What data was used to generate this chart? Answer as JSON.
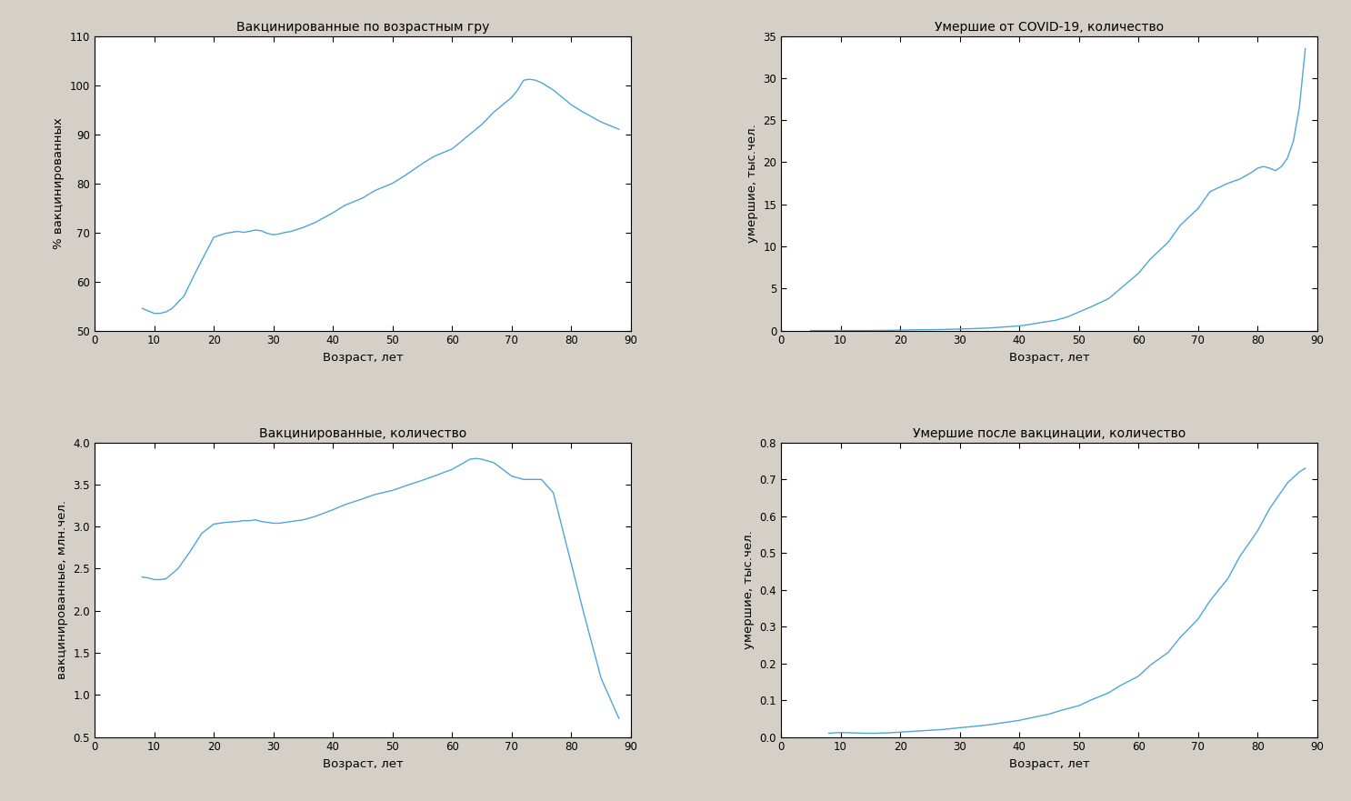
{
  "plot1": {
    "title": "Вакцинированные по возрастным гру",
    "xlabel": "Возраст, лет",
    "ylabel": "% вакцинированных",
    "xlim": [
      0,
      90
    ],
    "ylim": [
      50,
      110
    ],
    "yticks": [
      50,
      60,
      70,
      80,
      90,
      100,
      110
    ],
    "xticks": [
      0,
      10,
      20,
      30,
      40,
      50,
      60,
      70,
      80,
      90
    ],
    "x": [
      8,
      9,
      10,
      11,
      12,
      13,
      15,
      17,
      20,
      22,
      24,
      25,
      26,
      27,
      28,
      29,
      30,
      31,
      32,
      33,
      35,
      37,
      40,
      42,
      45,
      47,
      50,
      52,
      55,
      57,
      60,
      62,
      65,
      67,
      70,
      71,
      72,
      73,
      74,
      75,
      77,
      80,
      82,
      85,
      88
    ],
    "y": [
      54.5,
      54.0,
      53.5,
      53.5,
      53.8,
      54.5,
      57.0,
      62.0,
      69.0,
      69.8,
      70.2,
      70.0,
      70.2,
      70.5,
      70.3,
      69.8,
      69.5,
      69.7,
      70.0,
      70.2,
      71.0,
      72.0,
      74.0,
      75.5,
      77.0,
      78.5,
      80.0,
      81.5,
      84.0,
      85.5,
      87.0,
      89.0,
      92.0,
      94.5,
      97.5,
      99.0,
      101.0,
      101.2,
      101.0,
      100.5,
      99.0,
      96.0,
      94.5,
      92.5,
      91.0
    ],
    "color": "#4DA6D8",
    "linewidth": 1.0
  },
  "plot2": {
    "title": "Умершие от COVID-19, количество",
    "xlabel": "Возраст, лет",
    "ylabel": "умершие, тыс.чел.",
    "xlim": [
      0,
      90
    ],
    "ylim": [
      0,
      35
    ],
    "yticks": [
      0,
      5,
      10,
      15,
      20,
      25,
      30,
      35
    ],
    "xticks": [
      0,
      10,
      20,
      30,
      40,
      50,
      60,
      70,
      80,
      90
    ],
    "x": [
      5,
      8,
      10,
      12,
      15,
      17,
      18,
      19,
      20,
      22,
      25,
      27,
      30,
      32,
      35,
      37,
      40,
      42,
      44,
      45,
      46,
      47,
      48,
      49,
      50,
      52,
      55,
      57,
      60,
      62,
      65,
      67,
      70,
      72,
      75,
      77,
      79,
      80,
      81,
      82,
      83,
      84,
      85,
      86,
      87,
      88
    ],
    "y": [
      0.0,
      0.0,
      0.0,
      0.0,
      0.0,
      0.01,
      0.02,
      0.03,
      0.05,
      0.08,
      0.1,
      0.12,
      0.18,
      0.22,
      0.3,
      0.4,
      0.55,
      0.75,
      1.0,
      1.1,
      1.2,
      1.4,
      1.6,
      1.9,
      2.2,
      2.8,
      3.8,
      5.0,
      6.8,
      8.5,
      10.5,
      12.5,
      14.5,
      16.5,
      17.5,
      18.0,
      18.8,
      19.3,
      19.5,
      19.3,
      19.0,
      19.5,
      20.5,
      22.5,
      26.5,
      33.5
    ],
    "color": "#4DA6D8",
    "linewidth": 1.0
  },
  "plot3": {
    "title": "Вакцинированные, количество",
    "xlabel": "Возраст, лет",
    "ylabel": "вакцинированные, млн.чел.",
    "xlim": [
      0,
      90
    ],
    "ylim": [
      0.5,
      4.0
    ],
    "yticks": [
      0.5,
      1.0,
      1.5,
      2.0,
      2.5,
      3.0,
      3.5,
      4.0
    ],
    "xticks": [
      0,
      10,
      20,
      30,
      40,
      50,
      60,
      70,
      80,
      90
    ],
    "x": [
      8,
      9,
      10,
      11,
      12,
      14,
      16,
      18,
      20,
      22,
      24,
      25,
      26,
      27,
      28,
      29,
      30,
      31,
      32,
      33,
      35,
      37,
      40,
      42,
      45,
      47,
      50,
      52,
      55,
      57,
      60,
      61,
      62,
      63,
      64,
      65,
      67,
      70,
      72,
      75,
      77,
      80,
      82,
      85,
      88
    ],
    "y": [
      2.4,
      2.39,
      2.37,
      2.37,
      2.38,
      2.5,
      2.7,
      2.92,
      3.03,
      3.05,
      3.06,
      3.07,
      3.07,
      3.08,
      3.06,
      3.05,
      3.04,
      3.04,
      3.05,
      3.06,
      3.08,
      3.12,
      3.2,
      3.26,
      3.33,
      3.38,
      3.43,
      3.48,
      3.55,
      3.6,
      3.68,
      3.72,
      3.76,
      3.8,
      3.81,
      3.8,
      3.76,
      3.6,
      3.56,
      3.56,
      3.4,
      2.56,
      2.0,
      1.2,
      0.72
    ],
    "color": "#4DA6D8",
    "linewidth": 1.0
  },
  "plot4": {
    "title": "Умершие после вакцинации, количество",
    "xlabel": "Возраст, лет",
    "ylabel": "умершие, тыс.чел.",
    "xlim": [
      0,
      90
    ],
    "ylim": [
      0,
      0.8
    ],
    "yticks": [
      0,
      0.1,
      0.2,
      0.3,
      0.4,
      0.5,
      0.6,
      0.7,
      0.8
    ],
    "xticks": [
      0,
      10,
      20,
      30,
      40,
      50,
      60,
      70,
      80,
      90
    ],
    "x": [
      8,
      9,
      10,
      12,
      14,
      16,
      18,
      20,
      22,
      25,
      27,
      30,
      32,
      35,
      37,
      40,
      42,
      45,
      47,
      50,
      52,
      55,
      57,
      60,
      62,
      65,
      67,
      70,
      72,
      75,
      77,
      80,
      82,
      85,
      87,
      88
    ],
    "y": [
      0.01,
      0.011,
      0.012,
      0.011,
      0.01,
      0.01,
      0.011,
      0.013,
      0.015,
      0.018,
      0.02,
      0.025,
      0.028,
      0.033,
      0.038,
      0.045,
      0.052,
      0.062,
      0.072,
      0.085,
      0.1,
      0.12,
      0.14,
      0.165,
      0.195,
      0.23,
      0.27,
      0.32,
      0.37,
      0.43,
      0.49,
      0.56,
      0.62,
      0.69,
      0.72,
      0.73
    ],
    "color": "#4DA6D8",
    "linewidth": 1.0
  },
  "background_color": "#D4D0C8",
  "axes_bg": "#FFFFFF",
  "title_fontsize": 10,
  "label_fontsize": 9.5,
  "tick_fontsize": 8.5
}
